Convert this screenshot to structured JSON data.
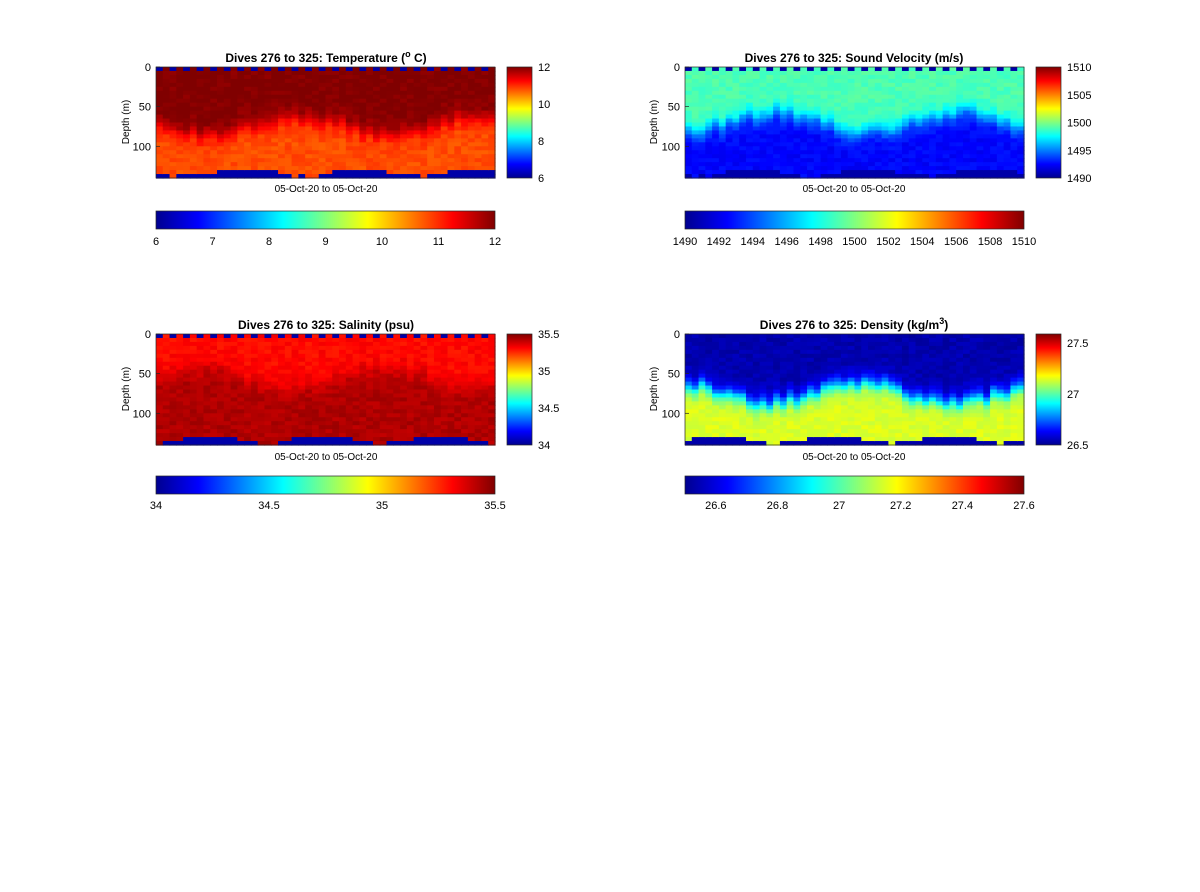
{
  "figure": {
    "panels": [
      {
        "id": "temperature",
        "title": "Dives 276 to 325: Temperature (",
        "title_sup": "o",
        "title_tail": " C)",
        "ylabel": "Depth (m)",
        "xlabel": "05-Oct-20 to 05-Oct-20",
        "yticks": [
          "0",
          "50",
          "100"
        ],
        "cbar_side_ticks": [
          "12",
          "10",
          "8",
          "6"
        ],
        "cbar_h_ticks": [
          "6",
          "7",
          "8",
          "9",
          "10",
          "11",
          "12"
        ]
      },
      {
        "id": "sound-velocity",
        "title": "Dives 276 to 325: Sound Velocity (m/s)",
        "title_sup": "",
        "title_tail": "",
        "ylabel": "Depth (m)",
        "xlabel": "05-Oct-20 to 05-Oct-20",
        "yticks": [
          "0",
          "50",
          "100"
        ],
        "cbar_side_ticks": [
          "1510",
          "1505",
          "1500",
          "1495",
          "1490"
        ],
        "cbar_h_ticks": [
          "1490",
          "1492",
          "1494",
          "1496",
          "1498",
          "1500",
          "1502",
          "1504",
          "1506",
          "1508",
          "1510"
        ]
      },
      {
        "id": "salinity",
        "title": "Dives 276 to 325: Salinity (psu)",
        "title_sup": "",
        "title_tail": "",
        "ylabel": "Depth (m)",
        "xlabel": "05-Oct-20 to 05-Oct-20",
        "yticks": [
          "0",
          "50",
          "100"
        ],
        "cbar_side_ticks": [
          "35.5",
          "35",
          "34.5",
          "34"
        ],
        "cbar_h_ticks": [
          "34",
          "34.5",
          "35",
          "35.5"
        ]
      },
      {
        "id": "density",
        "title": "Dives 276 to 325: Density (kg/m",
        "title_sup": "3",
        "title_tail": ")",
        "ylabel": "Depth (m)",
        "xlabel": "05-Oct-20 to 05-Oct-20",
        "yticks": [
          "0",
          "50",
          "100"
        ],
        "cbar_side_ticks": [
          "27.5",
          "27",
          "26.5"
        ],
        "cbar_h_ticks": [
          "26.6",
          "26.8",
          "27",
          "27.2",
          "27.4",
          "27.6"
        ]
      }
    ]
  },
  "chart_data": [
    {
      "type": "heatmap",
      "title": "Dives 276 to 325: Temperature (o C)",
      "xlabel": "05-Oct-20 to 05-Oct-20",
      "ylabel": "Depth (m)",
      "colormap": "jet",
      "ylim": [
        0,
        140
      ],
      "clim": [
        6,
        12
      ],
      "dives": [
        276,
        325
      ],
      "surface_value": 12,
      "deep_value": 10.8,
      "transition_depth_m": 75,
      "max_depth_m": [
        128,
        140
      ],
      "colorbar": "right and below"
    },
    {
      "type": "heatmap",
      "title": "Dives 276 to 325: Sound Velocity (m/s)",
      "xlabel": "05-Oct-20 to 05-Oct-20",
      "ylabel": "Depth (m)",
      "colormap": "jet",
      "ylim": [
        0,
        140
      ],
      "clim": [
        1490,
        1510
      ],
      "dives": [
        276,
        325
      ],
      "surface_value": 1499,
      "deep_value": 1492.5,
      "transition_depth_m": 70,
      "max_depth_m": [
        128,
        140
      ],
      "colorbar": "right and below"
    },
    {
      "type": "heatmap",
      "title": "Dives 276 to 325: Salinity (psu)",
      "xlabel": "05-Oct-20 to 05-Oct-20",
      "ylabel": "Depth (m)",
      "colormap": "jet",
      "ylim": [
        0,
        140
      ],
      "clim": [
        34,
        35.5
      ],
      "dives": [
        276,
        325
      ],
      "surface_value": 35.3,
      "deep_value": 35.43,
      "transition_depth_m": 55,
      "max_depth_m": [
        128,
        140
      ],
      "colorbar": "right and below"
    },
    {
      "type": "heatmap",
      "title": "Dives 276 to 325: Density (kg/m3)",
      "xlabel": "05-Oct-20 to 05-Oct-20",
      "ylabel": "Depth (m)",
      "colormap": "jet",
      "ylim": [
        0,
        140
      ],
      "clim": [
        26.5,
        27.6
      ],
      "dives": [
        276,
        325
      ],
      "surface_value": 26.55,
      "deep_value": 27.15,
      "transition_depth_m": 75,
      "max_depth_m": [
        128,
        140
      ],
      "colorbar": "right and below"
    }
  ]
}
